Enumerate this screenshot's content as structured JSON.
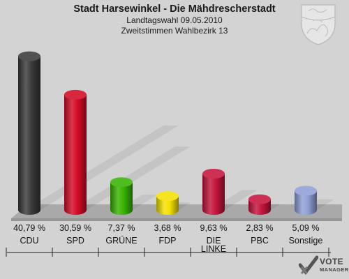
{
  "header": {
    "title": "Stadt Harsewinkel - Die Mähdrescherstadt",
    "subtitle_1": "Landtagswahl 09.05.2010",
    "subtitle_2": "Zweitstimmen Wahlbezirk 13"
  },
  "logo": {
    "line1": "VOTE",
    "line2": "MANAGER"
  },
  "chart_data": {
    "type": "bar",
    "title": "Stadt Harsewinkel - Die Mähdrescherstadt",
    "subtitle": "Landtagswahl 09.05.2010 / Zweitstimmen Wahlbezirk 13",
    "categories": [
      "CDU",
      "SPD",
      "GRÜNE",
      "FDP",
      "DIE LINKE",
      "PBC",
      "Sonstige"
    ],
    "category_lines": [
      [
        "CDU"
      ],
      [
        "SPD"
      ],
      [
        "GRÜNE"
      ],
      [
        "FDP"
      ],
      [
        "DIE",
        "LINKE"
      ],
      [
        "PBC"
      ],
      [
        "Sonstige"
      ]
    ],
    "values": [
      40.79,
      30.59,
      7.37,
      3.68,
      9.63,
      2.83,
      5.09
    ],
    "value_labels": [
      "40,79 %",
      "30,59 %",
      "7,37 %",
      "3,68 %",
      "9,63 %",
      "2,83 %",
      "5,09 %"
    ],
    "colors": [
      "#3a3a3a",
      "#d40a25",
      "#37b400",
      "#f4e000",
      "#c5143c",
      "#c5143c",
      "#8fa0d6"
    ],
    "ylim": [
      0,
      45
    ],
    "grid": false,
    "legend": "none",
    "style": "3d-cylinders"
  }
}
